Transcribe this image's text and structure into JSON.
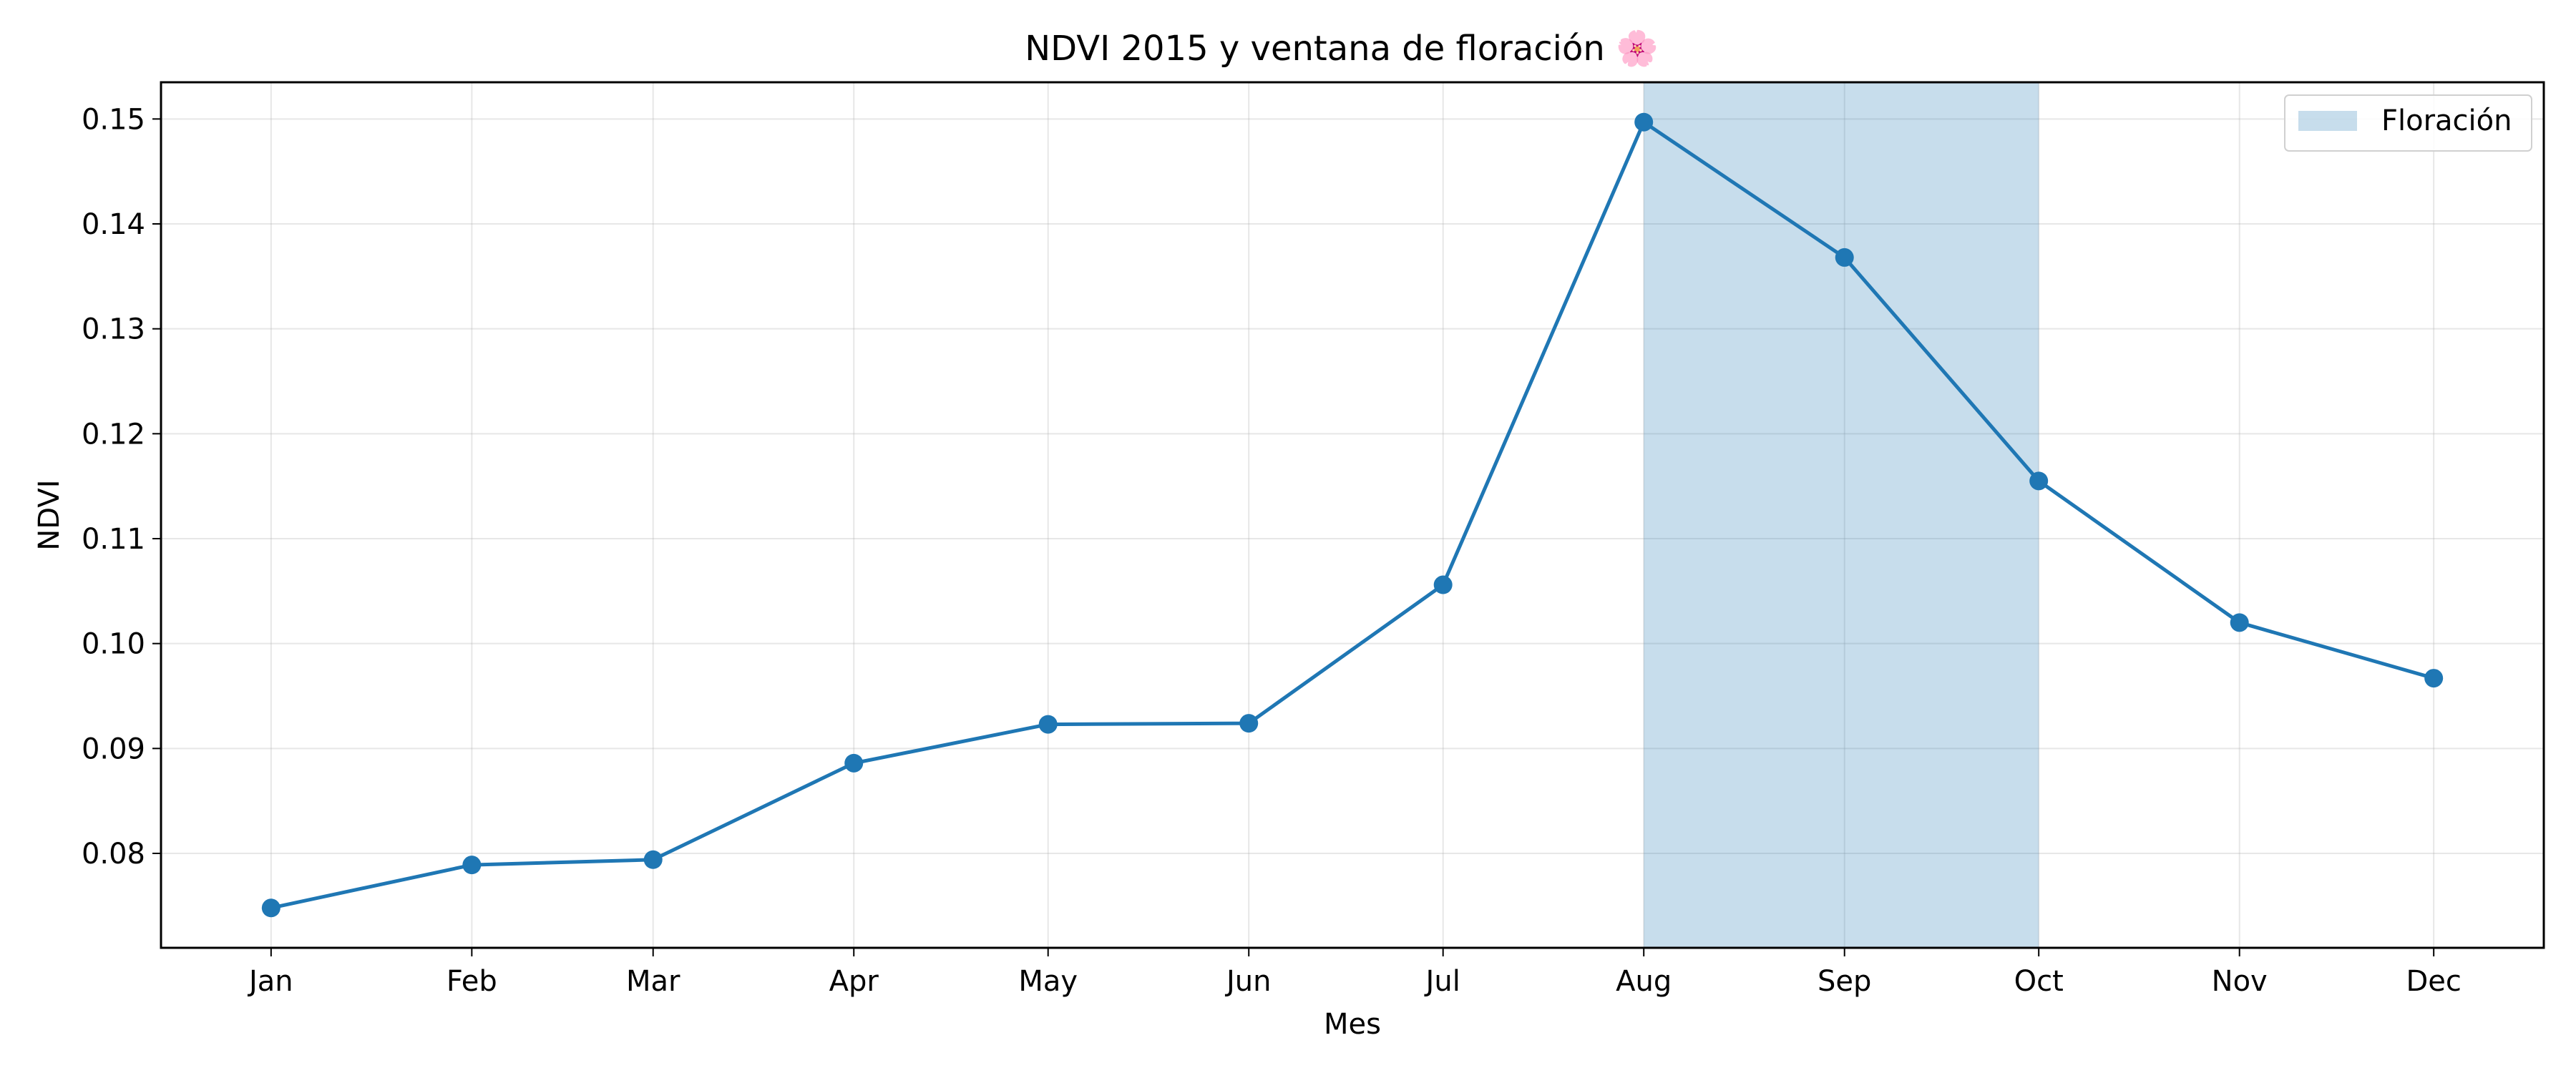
{
  "chart_data": {
    "type": "line",
    "title": "NDVI 2015 y ventana de floración 🌸",
    "xlabel": "Mes",
    "ylabel": "NDVI",
    "categories": [
      "Jan",
      "Feb",
      "Mar",
      "Apr",
      "May",
      "Jun",
      "Jul",
      "Aug",
      "Sep",
      "Oct",
      "Nov",
      "Dec"
    ],
    "x_days": [
      15,
      46,
      74,
      105,
      135,
      166,
      196,
      227,
      258,
      288,
      319,
      349
    ],
    "series": [
      {
        "values": [
          0.0748,
          0.0789,
          0.0794,
          0.0886,
          0.0923,
          0.0924,
          0.1056,
          0.1497,
          0.1368,
          0.1155,
          0.102,
          0.0967
        ],
        "color": "#1f77b4",
        "marker": "circle"
      }
    ],
    "shaded_regions": [
      {
        "name": "Floración",
        "from": "Aug",
        "to": "Oct",
        "from_day": 227,
        "to_day": 288,
        "color": "#1f77b4",
        "opacity": 0.25
      }
    ],
    "yticks": [
      "0.08",
      "0.09",
      "0.10",
      "0.11",
      "0.12",
      "0.13",
      "0.14",
      "0.15"
    ],
    "ylim": [
      0.071,
      0.1535
    ],
    "xlim": [
      -2,
      366
    ],
    "grid": true,
    "legend": {
      "position": "top-right",
      "entries": [
        "Floración"
      ]
    }
  }
}
